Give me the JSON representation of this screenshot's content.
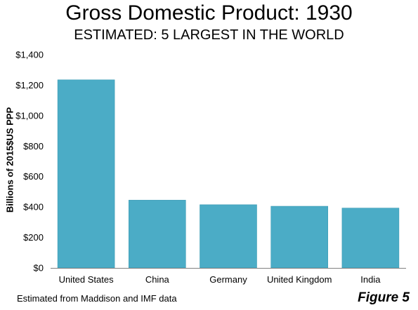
{
  "chart_data": {
    "type": "bar",
    "title": "Gross Domestic Product: 1930",
    "subtitle": "ESTIMATED: 5 LARGEST IN THE WORLD",
    "xlabel": "",
    "ylabel": "Billions of 2015$US  PPP",
    "categories": [
      "United States",
      "China",
      "Germany",
      "United Kingdom",
      "India"
    ],
    "values": [
      1235,
      445,
      415,
      405,
      393
    ],
    "ylim": [
      0,
      1400
    ],
    "yticks": [
      0,
      200,
      400,
      600,
      800,
      1000,
      1200,
      1400
    ],
    "ytick_labels": [
      "$0",
      "$200",
      "$400",
      "$600",
      "$800",
      "$1,000",
      "$1,200",
      "$1,400"
    ],
    "bar_color": "#4BACC6",
    "grid": false,
    "legend": "none"
  },
  "footnote": "Estimated from Maddison and IMF data",
  "figure_label": "Figure 5"
}
